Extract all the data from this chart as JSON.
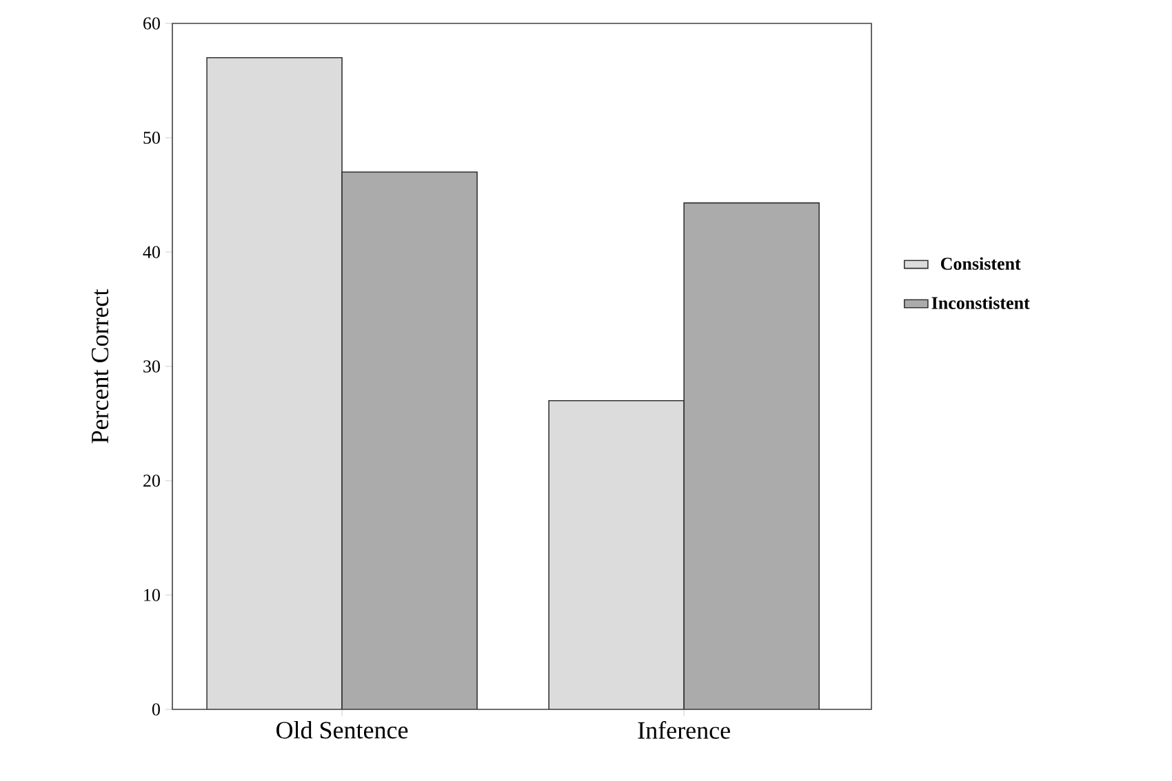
{
  "chart_data": {
    "type": "bar",
    "ylabel": "Percent Correct",
    "categories": [
      "Old Sentence",
      "Inference"
    ],
    "series": [
      {
        "name": "Consistent",
        "color": "#dcdcdc",
        "values": [
          57,
          27
        ]
      },
      {
        "name": "Inconstistent",
        "color": "#ababab",
        "values": [
          47,
          44.3
        ]
      }
    ],
    "ylim": [
      0,
      60
    ],
    "yticks": [
      0,
      10,
      20,
      30,
      40,
      50,
      60
    ],
    "legend": "right",
    "grid": false
  }
}
